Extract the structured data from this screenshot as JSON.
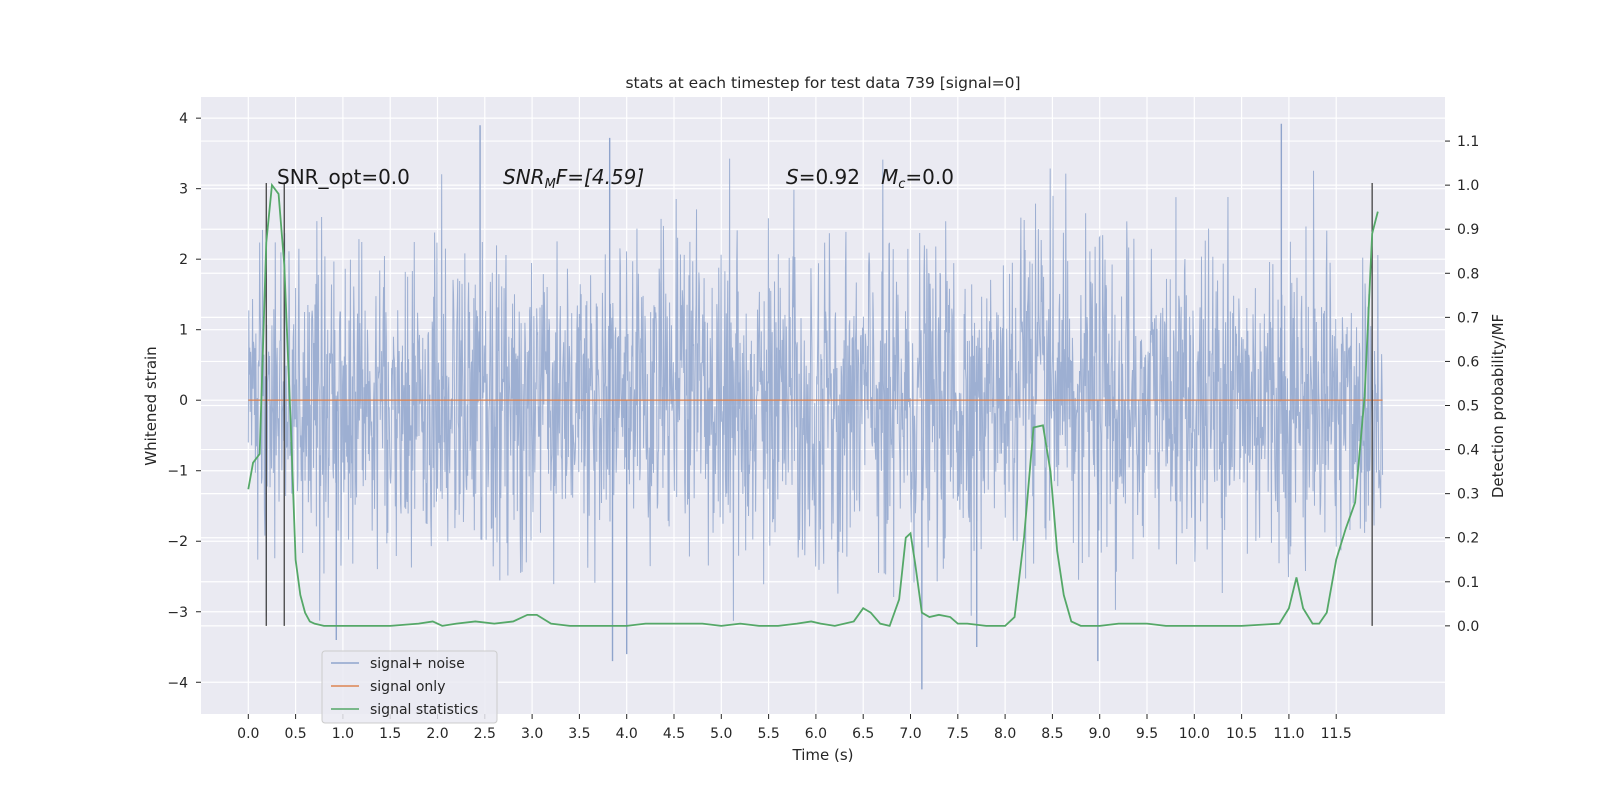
{
  "chart_data": {
    "type": "line",
    "title": "stats at each timestep for test data 739 [signal=0]",
    "xlabel": "Time (s)",
    "ylabel": "Whitened strain",
    "ylabel_right": "Detection probability/MF",
    "xlim": [
      -0.5,
      12.65
    ],
    "ylim": [
      -4.45,
      4.3
    ],
    "ylim_right": [
      -0.2,
      1.2
    ],
    "x_ticks": [
      "0.0",
      "0.5",
      "1.0",
      "1.5",
      "2.0",
      "2.5",
      "3.0",
      "3.5",
      "4.0",
      "4.5",
      "5.0",
      "5.5",
      "6.0",
      "6.5",
      "7.0",
      "7.5",
      "8.0",
      "8.5",
      "9.0",
      "9.5",
      "10.0",
      "10.5",
      "11.0",
      "11.5"
    ],
    "y_ticks": [
      4,
      3,
      2,
      1,
      0,
      -1,
      -2,
      -3,
      -4
    ],
    "y_ticks_right": [
      1.1,
      1.0,
      0.9,
      0.8,
      0.7,
      0.6,
      0.5,
      0.4,
      0.3,
      0.2,
      0.1,
      0.0
    ],
    "grid": true,
    "legend_position": "lower-left",
    "annotations": [
      "SNR_opt=0.0",
      "SNR",
      "M",
      "F=[4.59]",
      "S",
      "=0.92",
      "M",
      "c",
      "=0.0"
    ],
    "vertical_markers_x": [
      0.19,
      0.38,
      11.88
    ],
    "series": [
      {
        "name": "signal+ noise",
        "color": "#8fa4cc",
        "description": "whitened strain noise, roughly within ±2.3 with spikes near ±3.9",
        "x_range": [
          0.0,
          11.99
        ],
        "typical_envelope": [
          -2.3,
          2.3
        ],
        "spikes": [
          [
            2.45,
            3.9
          ],
          [
            3.82,
            3.72
          ],
          [
            10.92,
            3.92
          ],
          [
            3.85,
            -3.7
          ],
          [
            4.0,
            -3.6
          ],
          [
            7.12,
            -4.1
          ],
          [
            8.98,
            -3.7
          ],
          [
            0.93,
            -3.4
          ],
          [
            7.7,
            -3.5
          ]
        ]
      },
      {
        "name": "signal only",
        "color": "#dd8452",
        "x": [
          0.0,
          11.99
        ],
        "y": [
          0.0,
          0.0
        ]
      },
      {
        "name": "signal statistics",
        "color": "#55a868",
        "axis": "right",
        "x": [
          0.0,
          0.05,
          0.12,
          0.19,
          0.25,
          0.32,
          0.38,
          0.45,
          0.5,
          0.55,
          0.6,
          0.65,
          0.7,
          0.8,
          0.9,
          1.0,
          1.2,
          1.5,
          1.8,
          1.95,
          2.05,
          2.2,
          2.4,
          2.6,
          2.8,
          2.95,
          3.05,
          3.2,
          3.4,
          3.6,
          3.8,
          4.0,
          4.2,
          4.3,
          4.5,
          4.8,
          5.0,
          5.2,
          5.4,
          5.6,
          5.8,
          5.95,
          6.05,
          6.2,
          6.4,
          6.5,
          6.58,
          6.68,
          6.78,
          6.88,
          6.95,
          7.0,
          7.05,
          7.12,
          7.2,
          7.3,
          7.42,
          7.5,
          7.6,
          7.8,
          8.0,
          8.1,
          8.2,
          8.3,
          8.4,
          8.48,
          8.55,
          8.62,
          8.7,
          8.8,
          8.9,
          9.0,
          9.2,
          9.4,
          9.5,
          9.7,
          10.0,
          10.5,
          10.9,
          11.0,
          11.08,
          11.15,
          11.25,
          11.32,
          11.4,
          11.5,
          11.6,
          11.7,
          11.8,
          11.88,
          11.94
        ],
        "y": [
          0.31,
          0.37,
          0.39,
          0.87,
          1.0,
          0.98,
          0.82,
          0.45,
          0.15,
          0.07,
          0.03,
          0.01,
          0.005,
          0.0,
          0.0,
          0.0,
          0.0,
          0.0,
          0.005,
          0.01,
          0.0,
          0.005,
          0.01,
          0.005,
          0.01,
          0.025,
          0.025,
          0.005,
          0.0,
          0.0,
          0.0,
          0.0,
          0.005,
          0.005,
          0.005,
          0.005,
          0.0,
          0.005,
          0.0,
          0.0,
          0.005,
          0.01,
          0.005,
          0.0,
          0.01,
          0.04,
          0.03,
          0.005,
          0.0,
          0.06,
          0.2,
          0.21,
          0.14,
          0.03,
          0.02,
          0.025,
          0.02,
          0.005,
          0.005,
          0.0,
          0.0,
          0.02,
          0.2,
          0.45,
          0.455,
          0.35,
          0.17,
          0.07,
          0.01,
          0.0,
          0.0,
          0.0,
          0.005,
          0.005,
          0.005,
          0.0,
          0.0,
          0.0,
          0.005,
          0.04,
          0.11,
          0.04,
          0.005,
          0.005,
          0.03,
          0.15,
          0.22,
          0.28,
          0.52,
          0.89,
          0.94
        ]
      }
    ]
  }
}
